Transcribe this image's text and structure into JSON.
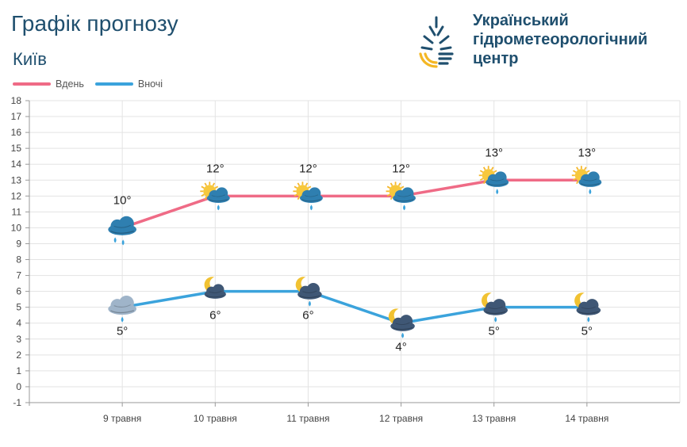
{
  "header": {
    "title": "Графік прогнозу",
    "city": "Київ",
    "org_line1": "Український",
    "org_line2": "гідрометеорологічний",
    "org_line3": "центр"
  },
  "colors": {
    "day": "#ef6b86",
    "night": "#3ba3dc",
    "title": "#1f4f6e",
    "grid": "#e3e3e3"
  },
  "chart_data": {
    "type": "line",
    "title": "",
    "xlabel": "",
    "ylabel": "",
    "ylim": [
      -1,
      18
    ],
    "yticks": [
      18,
      17,
      16,
      15,
      14,
      13,
      12,
      11,
      10,
      9,
      8,
      7,
      6,
      5,
      4,
      3,
      2,
      1,
      0,
      -1
    ],
    "grid": true,
    "legend_position": "top-left",
    "categories": [
      "9 травня",
      "10 травня",
      "11 травня",
      "12 травня",
      "13 травня",
      "14 травня"
    ],
    "series": [
      {
        "name": "Вдень",
        "values": [
          10,
          12,
          12,
          12,
          13,
          13
        ],
        "labels": [
          "10°",
          "12°",
          "12°",
          "12°",
          "13°",
          "13°"
        ],
        "icons": [
          "rain-cloud-icon",
          "sun-cloud-rain-icon",
          "sun-cloud-rain-icon",
          "sun-cloud-rain-icon",
          "sun-cloud-rain-icon",
          "sun-cloud-rain-icon"
        ]
      },
      {
        "name": "Вночі",
        "values": [
          5,
          6,
          6,
          4,
          5,
          5
        ],
        "labels": [
          "5°",
          "6°",
          "6°",
          "4°",
          "5°",
          "5°"
        ],
        "icons": [
          "grey-cloud-rain-icon",
          "moon-cloud-icon",
          "moon-cloud-rain-icon",
          "moon-cloud-rain-icon",
          "moon-cloud-rain-icon",
          "moon-cloud-rain-icon"
        ]
      }
    ]
  }
}
